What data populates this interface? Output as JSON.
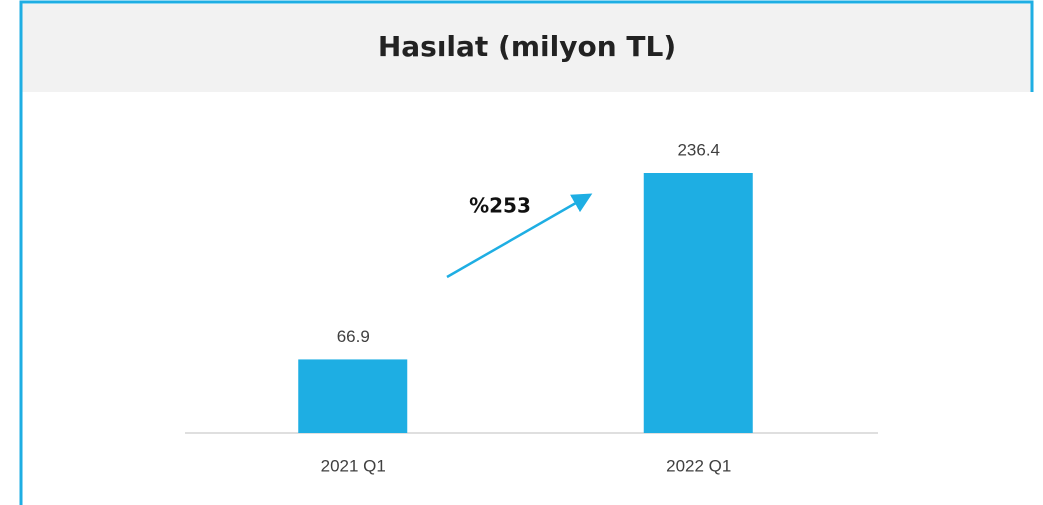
{
  "chart_data": {
    "type": "bar",
    "title": "Hasılat (milyon TL)",
    "categories": [
      "2021 Q1",
      "2022 Q1"
    ],
    "values": [
      66.9,
      236.4
    ],
    "color": "#1eaee3",
    "annotation": "%253"
  }
}
